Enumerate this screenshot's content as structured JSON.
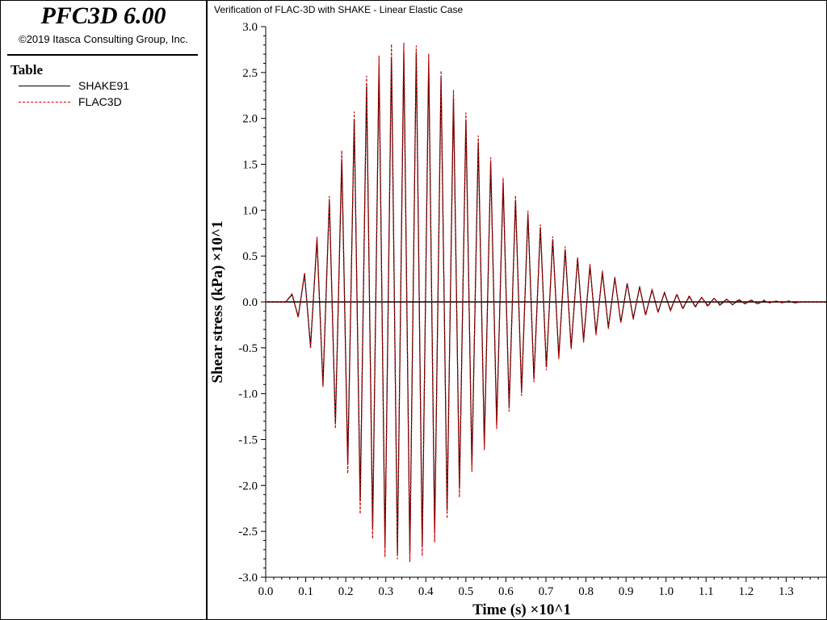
{
  "app": {
    "title": "PFC3D 6.00",
    "copyright": "©2019 Itasca Consulting Group, Inc."
  },
  "legend": {
    "heading": "Table",
    "items": [
      {
        "label": "SHAKE91",
        "color": "#000000",
        "style": "solid"
      },
      {
        "label": "FLAC3D",
        "color": "#cc0000",
        "style": "dashed"
      }
    ]
  },
  "chart_data": {
    "type": "line",
    "title": "Verification of FLAC-3D with SHAKE - Linear Elastic Case",
    "xlabel": "Time (s) ×10^1",
    "ylabel": "Shear stress (kPa) ×10^1",
    "xlim": [
      0.0,
      1.4
    ],
    "ylim": [
      -3.0,
      3.0
    ],
    "grid": false,
    "legend_position": "left-panel",
    "x_ticks": [
      "0.0",
      "0.1",
      "0.2",
      "0.3",
      "0.4",
      "0.5",
      "0.6",
      "0.7",
      "0.8",
      "0.9",
      "1.0",
      "1.1",
      "1.2",
      "1.3"
    ],
    "y_ticks": [
      "3.0",
      "2.5",
      "2.0",
      "1.5",
      "1.0",
      "0.5",
      "0.0",
      "-0.5",
      "-1.0",
      "-1.5",
      "-2.0",
      "-2.5",
      "-3.0"
    ],
    "series": [
      {
        "name": "SHAKE91",
        "color": "#000000",
        "x": [
          0.0,
          0.05,
          0.066,
          0.081,
          0.097,
          0.112,
          0.128,
          0.143,
          0.159,
          0.174,
          0.19,
          0.205,
          0.221,
          0.236,
          0.252,
          0.267,
          0.283,
          0.298,
          0.314,
          0.329,
          0.345,
          0.36,
          0.376,
          0.391,
          0.407,
          0.422,
          0.438,
          0.453,
          0.469,
          0.484,
          0.5,
          0.515,
          0.531,
          0.546,
          0.562,
          0.577,
          0.593,
          0.608,
          0.624,
          0.639,
          0.655,
          0.67,
          0.686,
          0.701,
          0.717,
          0.732,
          0.748,
          0.763,
          0.779,
          0.794,
          0.81,
          0.825,
          0.841,
          0.856,
          0.872,
          0.887,
          0.903,
          0.918,
          0.934,
          0.949,
          0.965,
          0.98,
          0.996,
          1.011,
          1.027,
          1.042,
          1.058,
          1.073,
          1.089,
          1.104,
          1.12,
          1.135,
          1.151,
          1.166,
          1.182,
          1.197,
          1.213,
          1.228,
          1.244,
          1.259,
          1.275,
          1.29,
          1.306,
          1.321,
          1.337,
          1.352,
          1.368,
          1.383,
          1.4
        ],
        "y": [
          0.0,
          0.0,
          0.08,
          -0.16,
          0.3,
          -0.48,
          0.68,
          -0.9,
          1.1,
          -1.33,
          1.55,
          -1.75,
          1.98,
          -2.17,
          2.35,
          -2.47,
          2.57,
          -2.66,
          2.67,
          -2.74,
          2.73,
          -2.74,
          2.72,
          -2.66,
          2.62,
          -2.5,
          2.44,
          -2.27,
          2.22,
          -2.03,
          1.98,
          -1.78,
          1.74,
          -1.55,
          1.51,
          -1.33,
          1.3,
          -1.14,
          1.11,
          -0.98,
          0.95,
          -0.84,
          0.81,
          -0.71,
          0.68,
          -0.6,
          0.57,
          -0.5,
          0.47,
          -0.42,
          0.39,
          -0.34,
          0.32,
          -0.28,
          0.26,
          -0.22,
          0.2,
          -0.18,
          0.16,
          -0.14,
          0.13,
          -0.11,
          0.1,
          -0.09,
          0.08,
          -0.07,
          0.06,
          -0.05,
          0.05,
          -0.04,
          0.04,
          -0.03,
          0.03,
          -0.03,
          0.02,
          -0.02,
          0.02,
          -0.02,
          0.01,
          -0.01,
          0.01,
          -0.01,
          0.01,
          -0.01,
          0.0,
          0.0,
          0.0,
          0.0,
          0.0
        ]
      },
      {
        "name": "FLAC3D",
        "color": "#cc0000",
        "x": [
          0.0,
          0.05,
          0.066,
          0.081,
          0.097,
          0.112,
          0.128,
          0.143,
          0.159,
          0.174,
          0.19,
          0.205,
          0.221,
          0.236,
          0.252,
          0.267,
          0.283,
          0.298,
          0.314,
          0.329,
          0.345,
          0.36,
          0.376,
          0.391,
          0.407,
          0.422,
          0.438,
          0.453,
          0.469,
          0.484,
          0.5,
          0.515,
          0.531,
          0.546,
          0.562,
          0.577,
          0.593,
          0.608,
          0.624,
          0.639,
          0.655,
          0.67,
          0.686,
          0.701,
          0.717,
          0.732,
          0.748,
          0.763,
          0.779,
          0.794,
          0.81,
          0.825,
          0.841,
          0.856,
          0.872,
          0.887,
          0.903,
          0.918,
          0.934,
          0.949,
          0.965,
          0.98,
          0.996,
          1.011,
          1.027,
          1.042,
          1.058,
          1.073,
          1.089,
          1.104,
          1.12,
          1.135,
          1.151,
          1.166,
          1.182,
          1.197,
          1.213,
          1.228,
          1.244,
          1.259,
          1.275,
          1.29,
          1.306,
          1.321,
          1.337,
          1.352,
          1.368,
          1.383,
          1.4
        ],
        "y": [
          0.0,
          0.0,
          0.09,
          -0.17,
          0.32,
          -0.51,
          0.71,
          -0.93,
          1.15,
          -1.38,
          1.65,
          -1.87,
          2.07,
          -2.31,
          2.46,
          -2.58,
          2.68,
          -2.78,
          2.81,
          -2.8,
          2.82,
          -2.83,
          2.79,
          -2.77,
          2.7,
          -2.62,
          2.52,
          -2.36,
          2.31,
          -2.13,
          2.06,
          -1.85,
          1.81,
          -1.61,
          1.57,
          -1.38,
          1.35,
          -1.19,
          1.16,
          -1.02,
          0.99,
          -0.87,
          0.84,
          -0.74,
          0.71,
          -0.62,
          0.6,
          -0.52,
          0.49,
          -0.44,
          0.41,
          -0.36,
          0.34,
          -0.29,
          0.27,
          -0.23,
          0.21,
          -0.19,
          0.17,
          -0.15,
          0.14,
          -0.12,
          0.11,
          -0.1,
          0.09,
          -0.08,
          0.07,
          -0.06,
          0.05,
          -0.05,
          0.04,
          -0.04,
          0.03,
          -0.03,
          0.03,
          -0.02,
          0.02,
          -0.02,
          0.02,
          -0.01,
          0.01,
          -0.01,
          0.01,
          -0.01,
          0.0,
          0.0,
          0.0,
          0.0,
          0.0
        ]
      }
    ]
  }
}
